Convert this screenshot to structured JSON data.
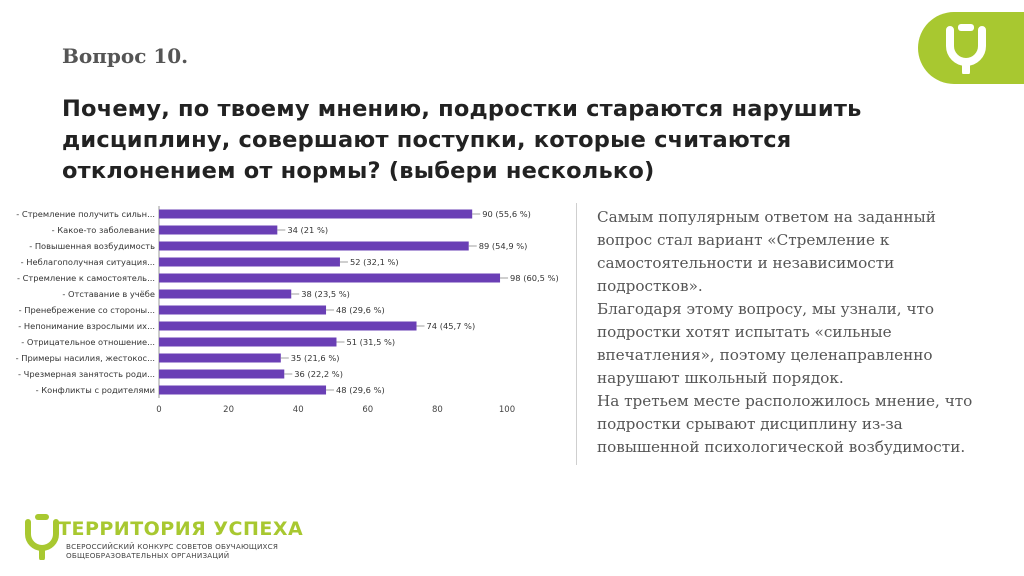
{
  "header": {
    "question_number": "Вопрос 10.",
    "question_text": "Почему, по твоему мнению, подростки стараются нарушить дисциплину, совершают поступки, которые считаются отклонением от нормы? (выбери несколько)"
  },
  "logo": {
    "icon": "u-letter-logo-icon",
    "color": "#a8c830"
  },
  "chart_data": {
    "type": "bar",
    "orientation": "horizontal",
    "categories": [
      "- Стремление получить сильн...",
      "- Какое-то заболевание",
      "- Повышенная возбудимость",
      "- Неблагополучная ситуация...",
      "- Стремление к самостоятель...",
      "- Отставание в учёбе",
      "- Пренебрежение со стороны...",
      "- Непонимание взрослыми их...",
      "- Отрицательное отношение...",
      "- Примеры насилия, жестокос...",
      "- Чрезмерная занятость роди...",
      "- Конфликты с родителями"
    ],
    "values": [
      90,
      34,
      89,
      52,
      98,
      38,
      48,
      74,
      51,
      35,
      36,
      48
    ],
    "data_labels": [
      "90 (55,6 %)",
      "34 (21 %)",
      "89 (54,9 %)",
      "52 (32,1 %)",
      "98 (60,5 %)",
      "38 (23,5 %)",
      "48 (29,6 %)",
      "74 (45,7 %)",
      "51 (31,5 %)",
      "35 (21,6 %)",
      "36 (22,2 %)",
      "48 (29,6 %)"
    ],
    "x_ticks": [
      "0",
      "20",
      "40",
      "60",
      "80",
      "100"
    ],
    "xlim": [
      0,
      100
    ],
    "bar_color": "#6a3fb5",
    "grid": false,
    "title": "",
    "xlabel": "",
    "ylabel": ""
  },
  "description": {
    "paragraphs": [
      "Самым популярным ответом на заданный вопрос стал вариант «Стремление к самостоятельности и независимости подростков».",
      "Благодаря этому вопросу, мы узнали, что подростки хотят испытать «сильные впечатления», поэтому целенаправленно нарушают школьный порядок.",
      "На третьем месте расположилось мнение, что подростки срывают дисциплину из-за повышенной психологической возбудимости."
    ]
  },
  "footer": {
    "brand_icon": "u-letter-logo-icon",
    "brand": "ТЕРРИТОРИЯ УСПЕХА",
    "subtitle_line1": "ВСЕРОССИЙСКИЙ КОНКУРС СОВЕТОВ ОБУЧАЮЩИХСЯ",
    "subtitle_line2": "ОБЩЕОБРАЗОВАТЕЛЬНЫХ ОРГАНИЗАЦИЙ",
    "brand_color": "#a8c830"
  }
}
